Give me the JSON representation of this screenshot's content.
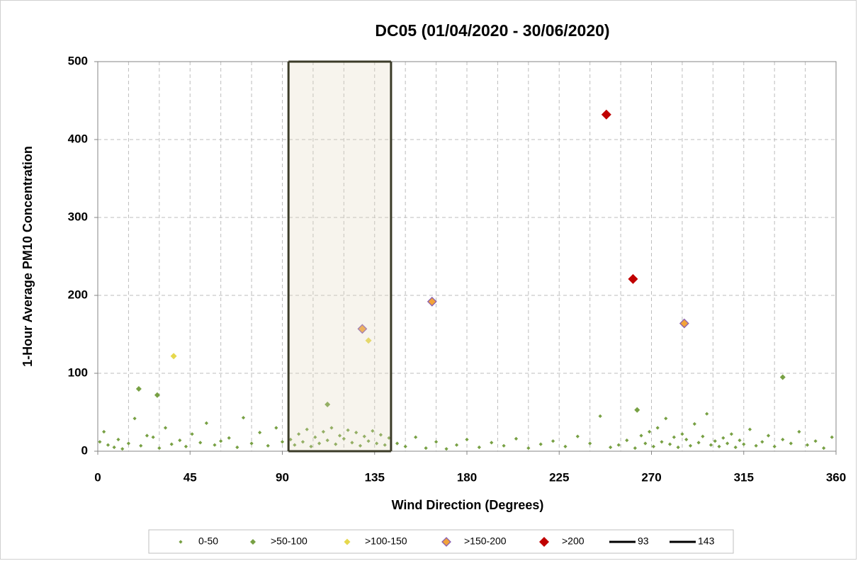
{
  "chart_data": {
    "type": "scatter",
    "title": "DC05 (01/04/2020 - 30/06/2020)",
    "x_label": "Wind Direction (Degrees)",
    "y_label": "1-Hour Average PM10 Concentration",
    "xlim": [
      0,
      360
    ],
    "ylim": [
      0,
      500
    ],
    "xticks": [
      0,
      45,
      90,
      135,
      180,
      225,
      270,
      315,
      360
    ],
    "x_minor_ticks": [
      15,
      30,
      60,
      75,
      105,
      120,
      150,
      165,
      195,
      210,
      240,
      255,
      285,
      300,
      330,
      345
    ],
    "yticks": [
      0,
      100,
      200,
      300,
      400,
      500
    ],
    "grid": true,
    "legend": "bottom",
    "shade_between_lines": true,
    "series": [
      {
        "name": "0-50",
        "type": "scatter",
        "color": "#77a043",
        "x": [
          1,
          3,
          5,
          8,
          10,
          12,
          15,
          18,
          21,
          24,
          27,
          30,
          33,
          36,
          40,
          43,
          46,
          50,
          53,
          57,
          60,
          64,
          68,
          71,
          75,
          79,
          83,
          87,
          90,
          94,
          96,
          98,
          100,
          102,
          104,
          106,
          108,
          110,
          112,
          114,
          116,
          118,
          120,
          122,
          124,
          126,
          128,
          130,
          132,
          134,
          136,
          138,
          140,
          142,
          146,
          150,
          155,
          160,
          165,
          170,
          175,
          180,
          186,
          192,
          198,
          204,
          210,
          216,
          222,
          228,
          234,
          240,
          245,
          250,
          254,
          258,
          262,
          265,
          267,
          269,
          271,
          273,
          275,
          277,
          279,
          281,
          283,
          285,
          287,
          289,
          291,
          293,
          295,
          297,
          299,
          301,
          303,
          305,
          307,
          309,
          311,
          313,
          315,
          318,
          321,
          324,
          327,
          330,
          334,
          338,
          342,
          346,
          350,
          354,
          358
        ],
        "values": [
          12,
          25,
          8,
          5,
          15,
          3,
          10,
          42,
          7,
          20,
          18,
          4,
          30,
          9,
          14,
          6,
          22,
          11,
          36,
          8,
          13,
          17,
          5,
          43,
          10,
          24,
          7,
          30,
          12,
          15,
          8,
          22,
          12,
          28,
          6,
          18,
          10,
          25,
          14,
          30,
          9,
          20,
          16,
          27,
          11,
          24,
          7,
          19,
          13,
          26,
          10,
          21,
          8,
          17,
          10,
          6,
          18,
          4,
          12,
          3,
          8,
          15,
          5,
          11,
          7,
          16,
          4,
          9,
          13,
          6,
          19,
          10,
          45,
          5,
          8,
          14,
          4,
          20,
          10,
          25,
          6,
          30,
          12,
          42,
          9,
          18,
          5,
          22,
          15,
          7,
          35,
          11,
          19,
          48,
          8,
          13,
          6,
          17,
          10,
          22,
          5,
          14,
          9,
          28,
          7,
          12,
          20,
          6,
          15,
          10,
          25,
          8,
          13,
          4,
          18
        ]
      },
      {
        "name": ">50-100",
        "type": "scatter",
        "color": "#77a043",
        "x": [
          20,
          29,
          112,
          263,
          334
        ],
        "values": [
          80,
          72,
          60,
          53,
          95
        ]
      },
      {
        "name": ">100-150",
        "type": "scatter",
        "color": "#e6d84c",
        "x": [
          37,
          132
        ],
        "values": [
          122,
          142
        ]
      },
      {
        "name": ">150-200",
        "type": "scatter",
        "color": "#f2a33a",
        "edge_color": "#8a5fb0",
        "x": [
          129,
          163,
          286
        ],
        "values": [
          157,
          192,
          164
        ]
      },
      {
        "name": ">200",
        "type": "scatter",
        "color": "#c00000",
        "x": [
          248,
          261
        ],
        "values": [
          432,
          221
        ]
      },
      {
        "name": "93",
        "type": "line",
        "color": "#3b3b28",
        "x": [
          93,
          93
        ],
        "values": [
          0,
          500
        ]
      },
      {
        "name": "143",
        "type": "line",
        "color": "#3b3b28",
        "x": [
          143,
          143
        ],
        "values": [
          0,
          500
        ]
      }
    ]
  }
}
